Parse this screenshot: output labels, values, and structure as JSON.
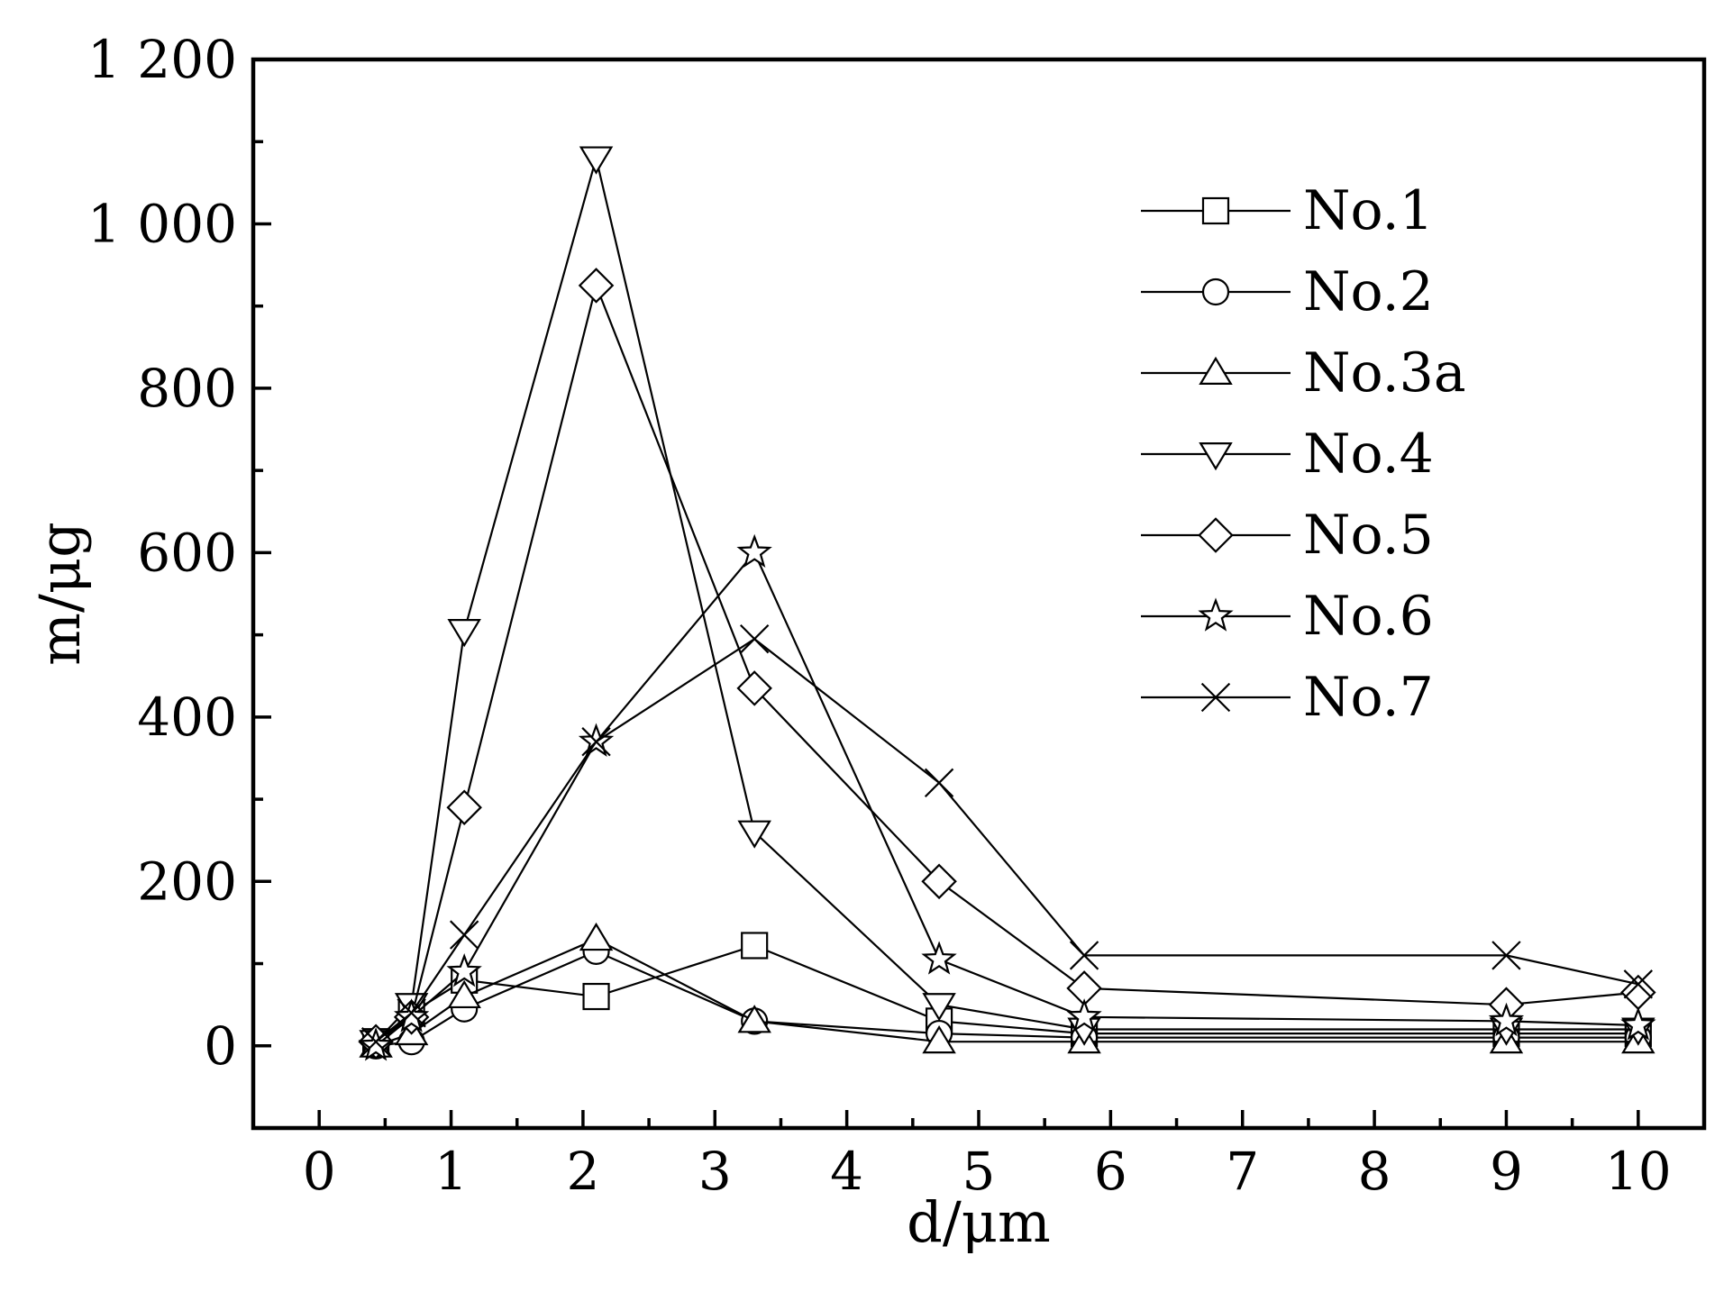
{
  "chart_data": {
    "type": "line",
    "xlabel": "d/μm",
    "ylabel": "m/μg",
    "xlim": [
      -0.5,
      10.5
    ],
    "ylim": [
      -100,
      1200
    ],
    "x_ticks": [
      0,
      1,
      2,
      3,
      4,
      5,
      6,
      7,
      8,
      9,
      10
    ],
    "x_tick_labels": [
      "0",
      "1",
      "2",
      "3",
      "4",
      "5",
      "6",
      "7",
      "8",
      "9",
      "10"
    ],
    "y_ticks": [
      0,
      200,
      400,
      600,
      800,
      1000,
      1200
    ],
    "y_tick_labels": [
      "0",
      "200",
      "400",
      "600",
      "800",
      "1 000",
      "1 200"
    ],
    "grid": false,
    "legend_position": "top-right",
    "series": [
      {
        "name": "No.1",
        "marker": "square",
        "x": [
          0.43,
          0.7,
          1.1,
          2.1,
          3.3,
          4.7,
          5.8,
          9.0,
          10.0
        ],
        "y": [
          5,
          40,
          80,
          60,
          122,
          30,
          15,
          15,
          15
        ]
      },
      {
        "name": "No.2",
        "marker": "circle",
        "x": [
          0.43,
          0.7,
          1.1,
          2.1,
          3.3,
          4.7,
          5.8,
          9.0,
          10.0
        ],
        "y": [
          0,
          5,
          45,
          115,
          30,
          15,
          10,
          10,
          10
        ]
      },
      {
        "name": "No.3a",
        "marker": "triangle-up",
        "x": [
          0.43,
          0.7,
          1.1,
          2.1,
          3.3,
          4.7,
          5.8,
          9.0,
          10.0
        ],
        "y": [
          0,
          15,
          60,
          130,
          30,
          5,
          5,
          5,
          5
        ]
      },
      {
        "name": "No.4",
        "marker": "triangle-down",
        "x": [
          0.43,
          0.7,
          1.1,
          2.1,
          3.3,
          4.7,
          5.8,
          9.0,
          10.0
        ],
        "y": [
          5,
          50,
          505,
          1080,
          260,
          50,
          20,
          20,
          20
        ]
      },
      {
        "name": "No.5",
        "marker": "diamond",
        "x": [
          0.43,
          0.7,
          1.1,
          2.1,
          3.3,
          4.7,
          5.8,
          9.0,
          10.0
        ],
        "y": [
          5,
          35,
          290,
          925,
          435,
          200,
          70,
          50,
          65
        ]
      },
      {
        "name": "No.6",
        "marker": "star",
        "x": [
          0.43,
          0.7,
          1.1,
          2.1,
          3.3,
          4.7,
          5.8,
          9.0,
          10.0
        ],
        "y": [
          0,
          35,
          90,
          370,
          600,
          105,
          35,
          30,
          25
        ]
      },
      {
        "name": "No.7",
        "marker": "cross",
        "x": [
          0.43,
          0.7,
          1.1,
          2.1,
          3.3,
          4.7,
          5.8,
          9.0,
          10.0
        ],
        "y": [
          5,
          40,
          135,
          370,
          495,
          320,
          110,
          110,
          75
        ]
      }
    ]
  }
}
